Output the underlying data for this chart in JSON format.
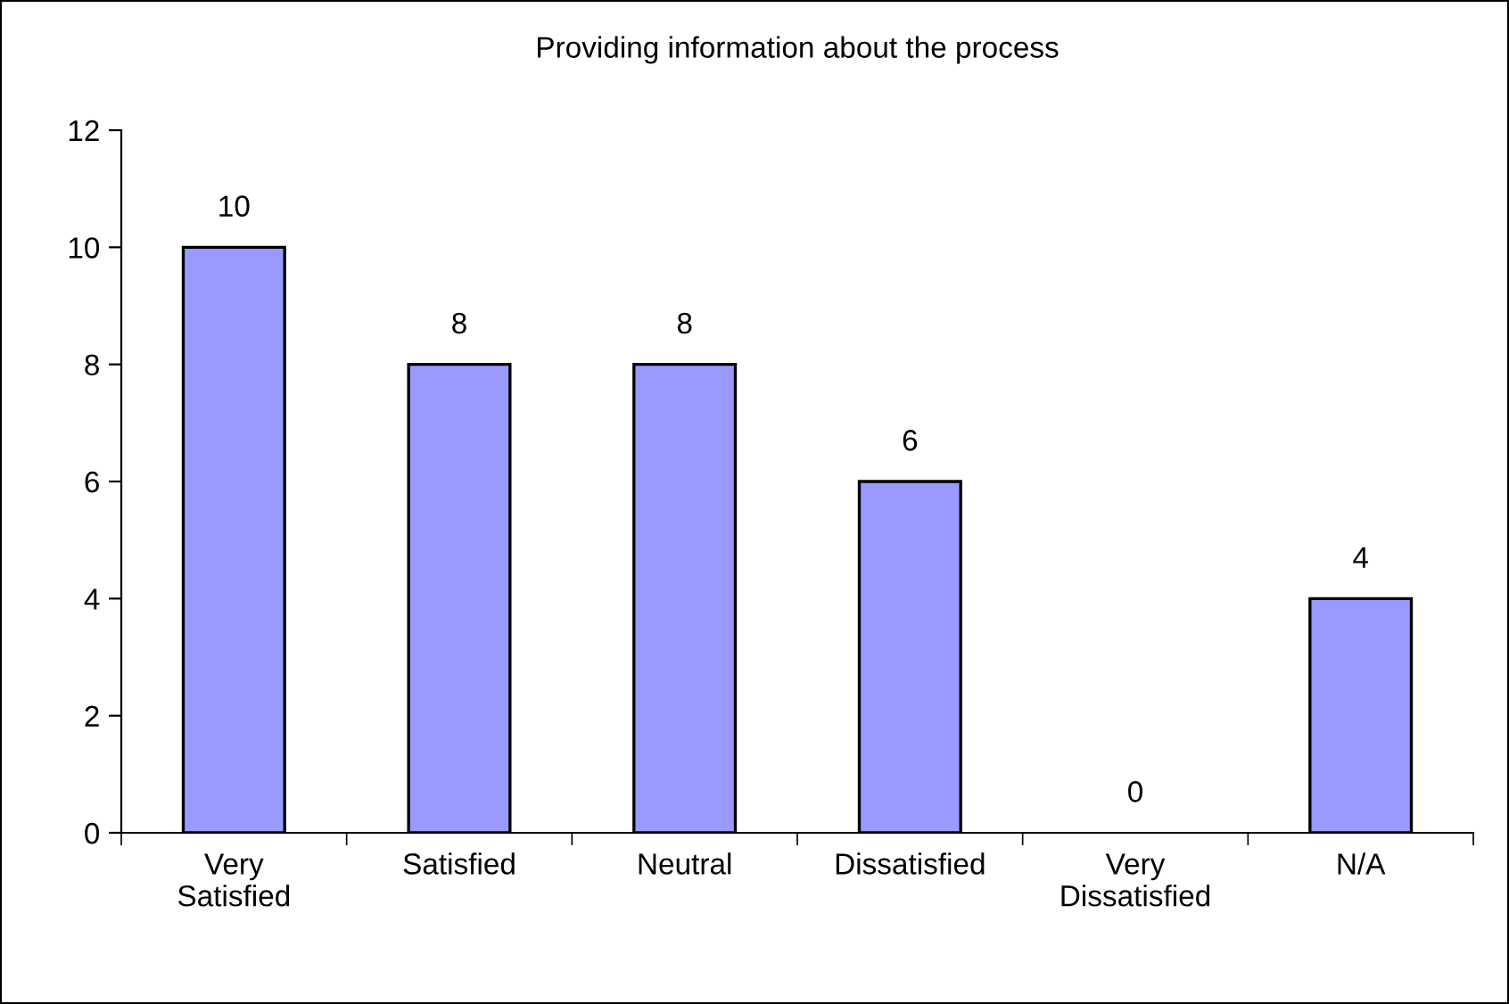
{
  "chart_data": {
    "type": "bar",
    "title": "Providing information about the process",
    "categories": [
      "Very\nSatisfied",
      "Satisfied",
      "Neutral",
      "Dissatisfied",
      "Very\nDissatisfied",
      "N/A"
    ],
    "values": [
      10,
      8,
      8,
      6,
      0,
      4
    ],
    "color": "#9999ff",
    "ylim": [
      0,
      12
    ],
    "yticks": [
      0,
      2,
      4,
      6,
      8,
      10,
      12
    ],
    "grid": false,
    "data_labels": true
  }
}
